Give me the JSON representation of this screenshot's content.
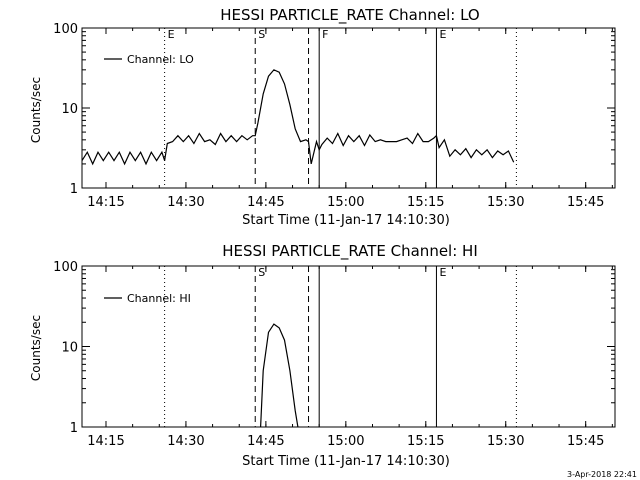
{
  "footer": {
    "timestamp": "3-Apr-2018 22:41"
  },
  "colors": {
    "line": "#000000",
    "background": "#ffffff"
  },
  "chart_data": [
    {
      "type": "line",
      "title": "HESSI PARTICLE_RATE Channel: LO",
      "xlabel": "Start Time (11-Jan-17 14:10:30)",
      "ylabel": "Counts/sec",
      "yscale": "log",
      "xlim_min": [
        0,
        100
      ],
      "ylim": [
        1,
        100
      ],
      "xticks": [
        {
          "min": 4.5,
          "label": "14:15"
        },
        {
          "min": 19.5,
          "label": "14:30"
        },
        {
          "min": 34.5,
          "label": "14:45"
        },
        {
          "min": 49.5,
          "label": "15:00"
        },
        {
          "min": 64.5,
          "label": "15:15"
        },
        {
          "min": 79.5,
          "label": "15:30"
        },
        {
          "min": 94.5,
          "label": "15:45"
        }
      ],
      "yticks": [
        {
          "value": 1,
          "label": "1"
        },
        {
          "value": 10,
          "label": "10"
        },
        {
          "value": 100,
          "label": "100"
        }
      ],
      "legend": {
        "label": "Channel: LO",
        "position": "top-left"
      },
      "markers": [
        {
          "min": 15.5,
          "style": "dotted",
          "label": "E"
        },
        {
          "min": 32.5,
          "style": "dashed",
          "label": "S"
        },
        {
          "min": 42.5,
          "style": "dashed",
          "label": ""
        },
        {
          "min": 44.5,
          "style": "solid",
          "label": "F"
        },
        {
          "min": 66.5,
          "style": "solid",
          "label": "E"
        },
        {
          "min": 81.5,
          "style": "dotted",
          "label": ""
        }
      ],
      "series": [
        {
          "x": [
            0,
            1,
            2,
            3,
            4,
            5,
            6,
            7,
            8,
            9,
            10,
            11,
            12,
            13,
            14,
            15,
            15.5,
            16,
            17,
            18,
            19,
            20,
            21,
            22,
            23,
            24,
            25,
            26,
            27,
            28,
            29,
            30,
            31,
            32,
            32.5,
            33,
            34,
            35,
            36,
            37,
            38,
            39,
            40,
            41,
            42,
            42.5,
            43,
            44,
            44.5,
            45,
            46,
            47,
            48,
            49,
            50,
            51,
            52,
            53,
            54,
            55,
            56,
            57,
            58,
            59,
            60,
            61,
            62,
            63,
            64,
            65,
            66,
            66.5,
            67,
            68,
            69,
            70,
            71,
            72,
            73,
            74,
            75,
            76,
            77,
            78,
            79,
            80,
            81
          ],
          "y": [
            2.2,
            2.8,
            2.0,
            2.8,
            2.2,
            2.8,
            2.2,
            2.8,
            2.0,
            2.8,
            2.2,
            2.8,
            2.0,
            2.8,
            2.2,
            2.8,
            2.2,
            3.6,
            3.8,
            4.5,
            3.8,
            4.5,
            3.6,
            4.8,
            3.8,
            4.0,
            3.5,
            4.8,
            3.8,
            4.5,
            3.8,
            4.5,
            4.0,
            4.5,
            4.5,
            6.5,
            15,
            25,
            30,
            28,
            20,
            11,
            5.5,
            3.8,
            4.0,
            3.8,
            2.0,
            3.8,
            3.0,
            3.5,
            4.2,
            3.6,
            4.8,
            3.4,
            4.5,
            3.8,
            4.5,
            3.4,
            4.6,
            3.8,
            4.0,
            3.8,
            3.8,
            3.8,
            4.0,
            4.2,
            3.6,
            4.8,
            3.8,
            3.8,
            4.2,
            4.5,
            3.2,
            4.0,
            2.5,
            3.0,
            2.6,
            3.1,
            2.4,
            3.0,
            2.6,
            3.0,
            2.4,
            2.9,
            2.6,
            2.9,
            2.1
          ]
        }
      ]
    },
    {
      "type": "line",
      "title": "HESSI PARTICLE_RATE Channel: HI",
      "xlabel": "Start Time (11-Jan-17 14:10:30)",
      "ylabel": "Counts/sec",
      "yscale": "log",
      "xlim_min": [
        0,
        100
      ],
      "ylim": [
        1,
        100
      ],
      "xticks": [
        {
          "min": 4.5,
          "label": "14:15"
        },
        {
          "min": 19.5,
          "label": "14:30"
        },
        {
          "min": 34.5,
          "label": "14:45"
        },
        {
          "min": 49.5,
          "label": "15:00"
        },
        {
          "min": 64.5,
          "label": "15:15"
        },
        {
          "min": 79.5,
          "label": "15:30"
        },
        {
          "min": 94.5,
          "label": "15:45"
        }
      ],
      "yticks": [
        {
          "value": 1,
          "label": "1"
        },
        {
          "value": 10,
          "label": "10"
        },
        {
          "value": 100,
          "label": "100"
        }
      ],
      "legend": {
        "label": "Channel: HI",
        "position": "top-left"
      },
      "markers": [
        {
          "min": 15.5,
          "style": "dotted",
          "label": ""
        },
        {
          "min": 32.5,
          "style": "dashed",
          "label": "S"
        },
        {
          "min": 42.5,
          "style": "dashed",
          "label": ""
        },
        {
          "min": 44.5,
          "style": "solid",
          "label": ""
        },
        {
          "min": 66.5,
          "style": "solid",
          "label": "E"
        },
        {
          "min": 81.5,
          "style": "dotted",
          "label": ""
        }
      ],
      "series": [
        {
          "x": [
            33.5,
            34,
            35,
            36,
            37,
            38,
            39,
            40,
            40.5
          ],
          "y": [
            1.0,
            5,
            15,
            19,
            17,
            12,
            5,
            1.6,
            1.0
          ]
        }
      ]
    }
  ]
}
